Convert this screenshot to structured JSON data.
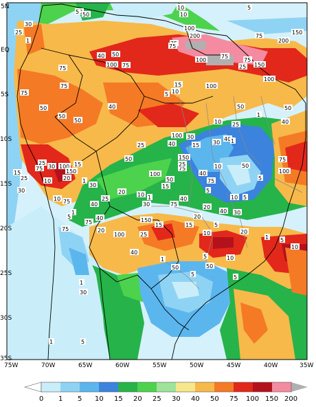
{
  "map": {
    "lat_labels": [
      "5N",
      "EQ",
      "5S",
      "10S",
      "15S",
      "20S",
      "25S",
      "30S",
      "35S"
    ],
    "lon_labels": [
      "75W",
      "70W",
      "65W",
      "60W",
      "55W",
      "50W",
      "45W",
      "40W",
      "35W"
    ]
  },
  "legend": {
    "thresholds": [
      "0",
      "1",
      "5",
      "10",
      "15",
      "20",
      "25",
      "30",
      "40",
      "50",
      "75",
      "100",
      "150",
      "200"
    ],
    "colors": [
      "#ffffff",
      "#c9eefa",
      "#8fd3f4",
      "#5cb6ee",
      "#3b83dd",
      "#26b34a",
      "#4dd24d",
      "#9de39a",
      "#f6e78a",
      "#f7b94a",
      "#f57a25",
      "#e2281b",
      "#b3121d",
      "#f48ba0",
      "#b0b0b0"
    ]
  },
  "contour_labels": [
    {
      "t": "5"
    },
    {
      "t": "50"
    },
    {
      "t": "30"
    },
    {
      "t": "25"
    },
    {
      "t": "1"
    },
    {
      "t": "5"
    },
    {
      "t": "10"
    },
    {
      "t": "100"
    },
    {
      "t": "75"
    },
    {
      "t": "50"
    },
    {
      "t": "40"
    },
    {
      "t": "50"
    },
    {
      "t": "75"
    },
    {
      "t": "100"
    },
    {
      "t": "200"
    },
    {
      "t": "150"
    },
    {
      "t": "75"
    },
    {
      "t": "200"
    },
    {
      "t": "75"
    },
    {
      "t": "75"
    },
    {
      "t": "100"
    },
    {
      "t": "150"
    },
    {
      "t": "100"
    },
    {
      "t": "75"
    },
    {
      "t": "75"
    },
    {
      "t": "25"
    },
    {
      "t": "15"
    },
    {
      "t": "5"
    },
    {
      "t": "10"
    },
    {
      "t": "100"
    },
    {
      "t": "75"
    },
    {
      "t": "50"
    },
    {
      "t": "50"
    },
    {
      "t": "75"
    },
    {
      "t": "40"
    },
    {
      "t": "50"
    },
    {
      "t": "50"
    },
    {
      "t": "100"
    },
    {
      "t": "40"
    },
    {
      "t": "10"
    },
    {
      "t": "25"
    },
    {
      "t": "1"
    },
    {
      "t": "50"
    },
    {
      "t": "30"
    },
    {
      "t": "40"
    },
    {
      "t": "30"
    },
    {
      "t": "15"
    },
    {
      "t": "10"
    },
    {
      "t": "5"
    },
    {
      "t": "40"
    },
    {
      "t": "50"
    },
    {
      "t": "75"
    },
    {
      "t": "100"
    },
    {
      "t": "150"
    },
    {
      "t": "75"
    },
    {
      "t": "75"
    },
    {
      "t": "50"
    },
    {
      "t": "15"
    },
    {
      "t": "5"
    },
    {
      "t": "1"
    },
    {
      "t": "30"
    },
    {
      "t": "25"
    },
    {
      "t": "20"
    },
    {
      "t": "10"
    },
    {
      "t": "50"
    },
    {
      "t": "40"
    },
    {
      "t": "25"
    },
    {
      "t": "30"
    },
    {
      "t": "100"
    },
    {
      "t": "20"
    },
    {
      "t": "150"
    },
    {
      "t": "10"
    },
    {
      "t": "25"
    },
    {
      "t": "30"
    },
    {
      "t": "15"
    },
    {
      "t": "25"
    },
    {
      "t": "40"
    },
    {
      "t": "5"
    },
    {
      "t": "1"
    },
    {
      "t": "20"
    },
    {
      "t": "10"
    },
    {
      "t": "5"
    },
    {
      "t": "1"
    },
    {
      "t": "5"
    },
    {
      "t": "40"
    },
    {
      "t": "75"
    },
    {
      "t": "75"
    },
    {
      "t": "100"
    },
    {
      "t": "20"
    },
    {
      "t": "75"
    },
    {
      "t": "15"
    },
    {
      "t": "25"
    },
    {
      "t": "30"
    },
    {
      "t": "10"
    },
    {
      "t": "40"
    },
    {
      "t": "100"
    },
    {
      "t": "1"
    },
    {
      "t": "75"
    },
    {
      "t": "75"
    },
    {
      "t": "150"
    },
    {
      "t": "25"
    },
    {
      "t": "40"
    },
    {
      "t": "40"
    },
    {
      "t": "30"
    },
    {
      "t": "20"
    },
    {
      "t": "15"
    },
    {
      "t": "5"
    },
    {
      "t": "10"
    },
    {
      "t": "15"
    },
    {
      "t": "1"
    },
    {
      "t": "5"
    },
    {
      "t": "10"
    },
    {
      "t": "20"
    },
    {
      "t": "5"
    },
    {
      "t": "50"
    },
    {
      "t": "10"
    },
    {
      "t": "5"
    },
    {
      "t": "1"
    },
    {
      "t": "50"
    },
    {
      "t": "5"
    },
    {
      "t": "1"
    },
    {
      "t": "30"
    },
    {
      "t": "5"
    },
    {
      "t": "1"
    },
    {
      "t": "10"
    },
    {
      "t": "5"
    }
  ]
}
